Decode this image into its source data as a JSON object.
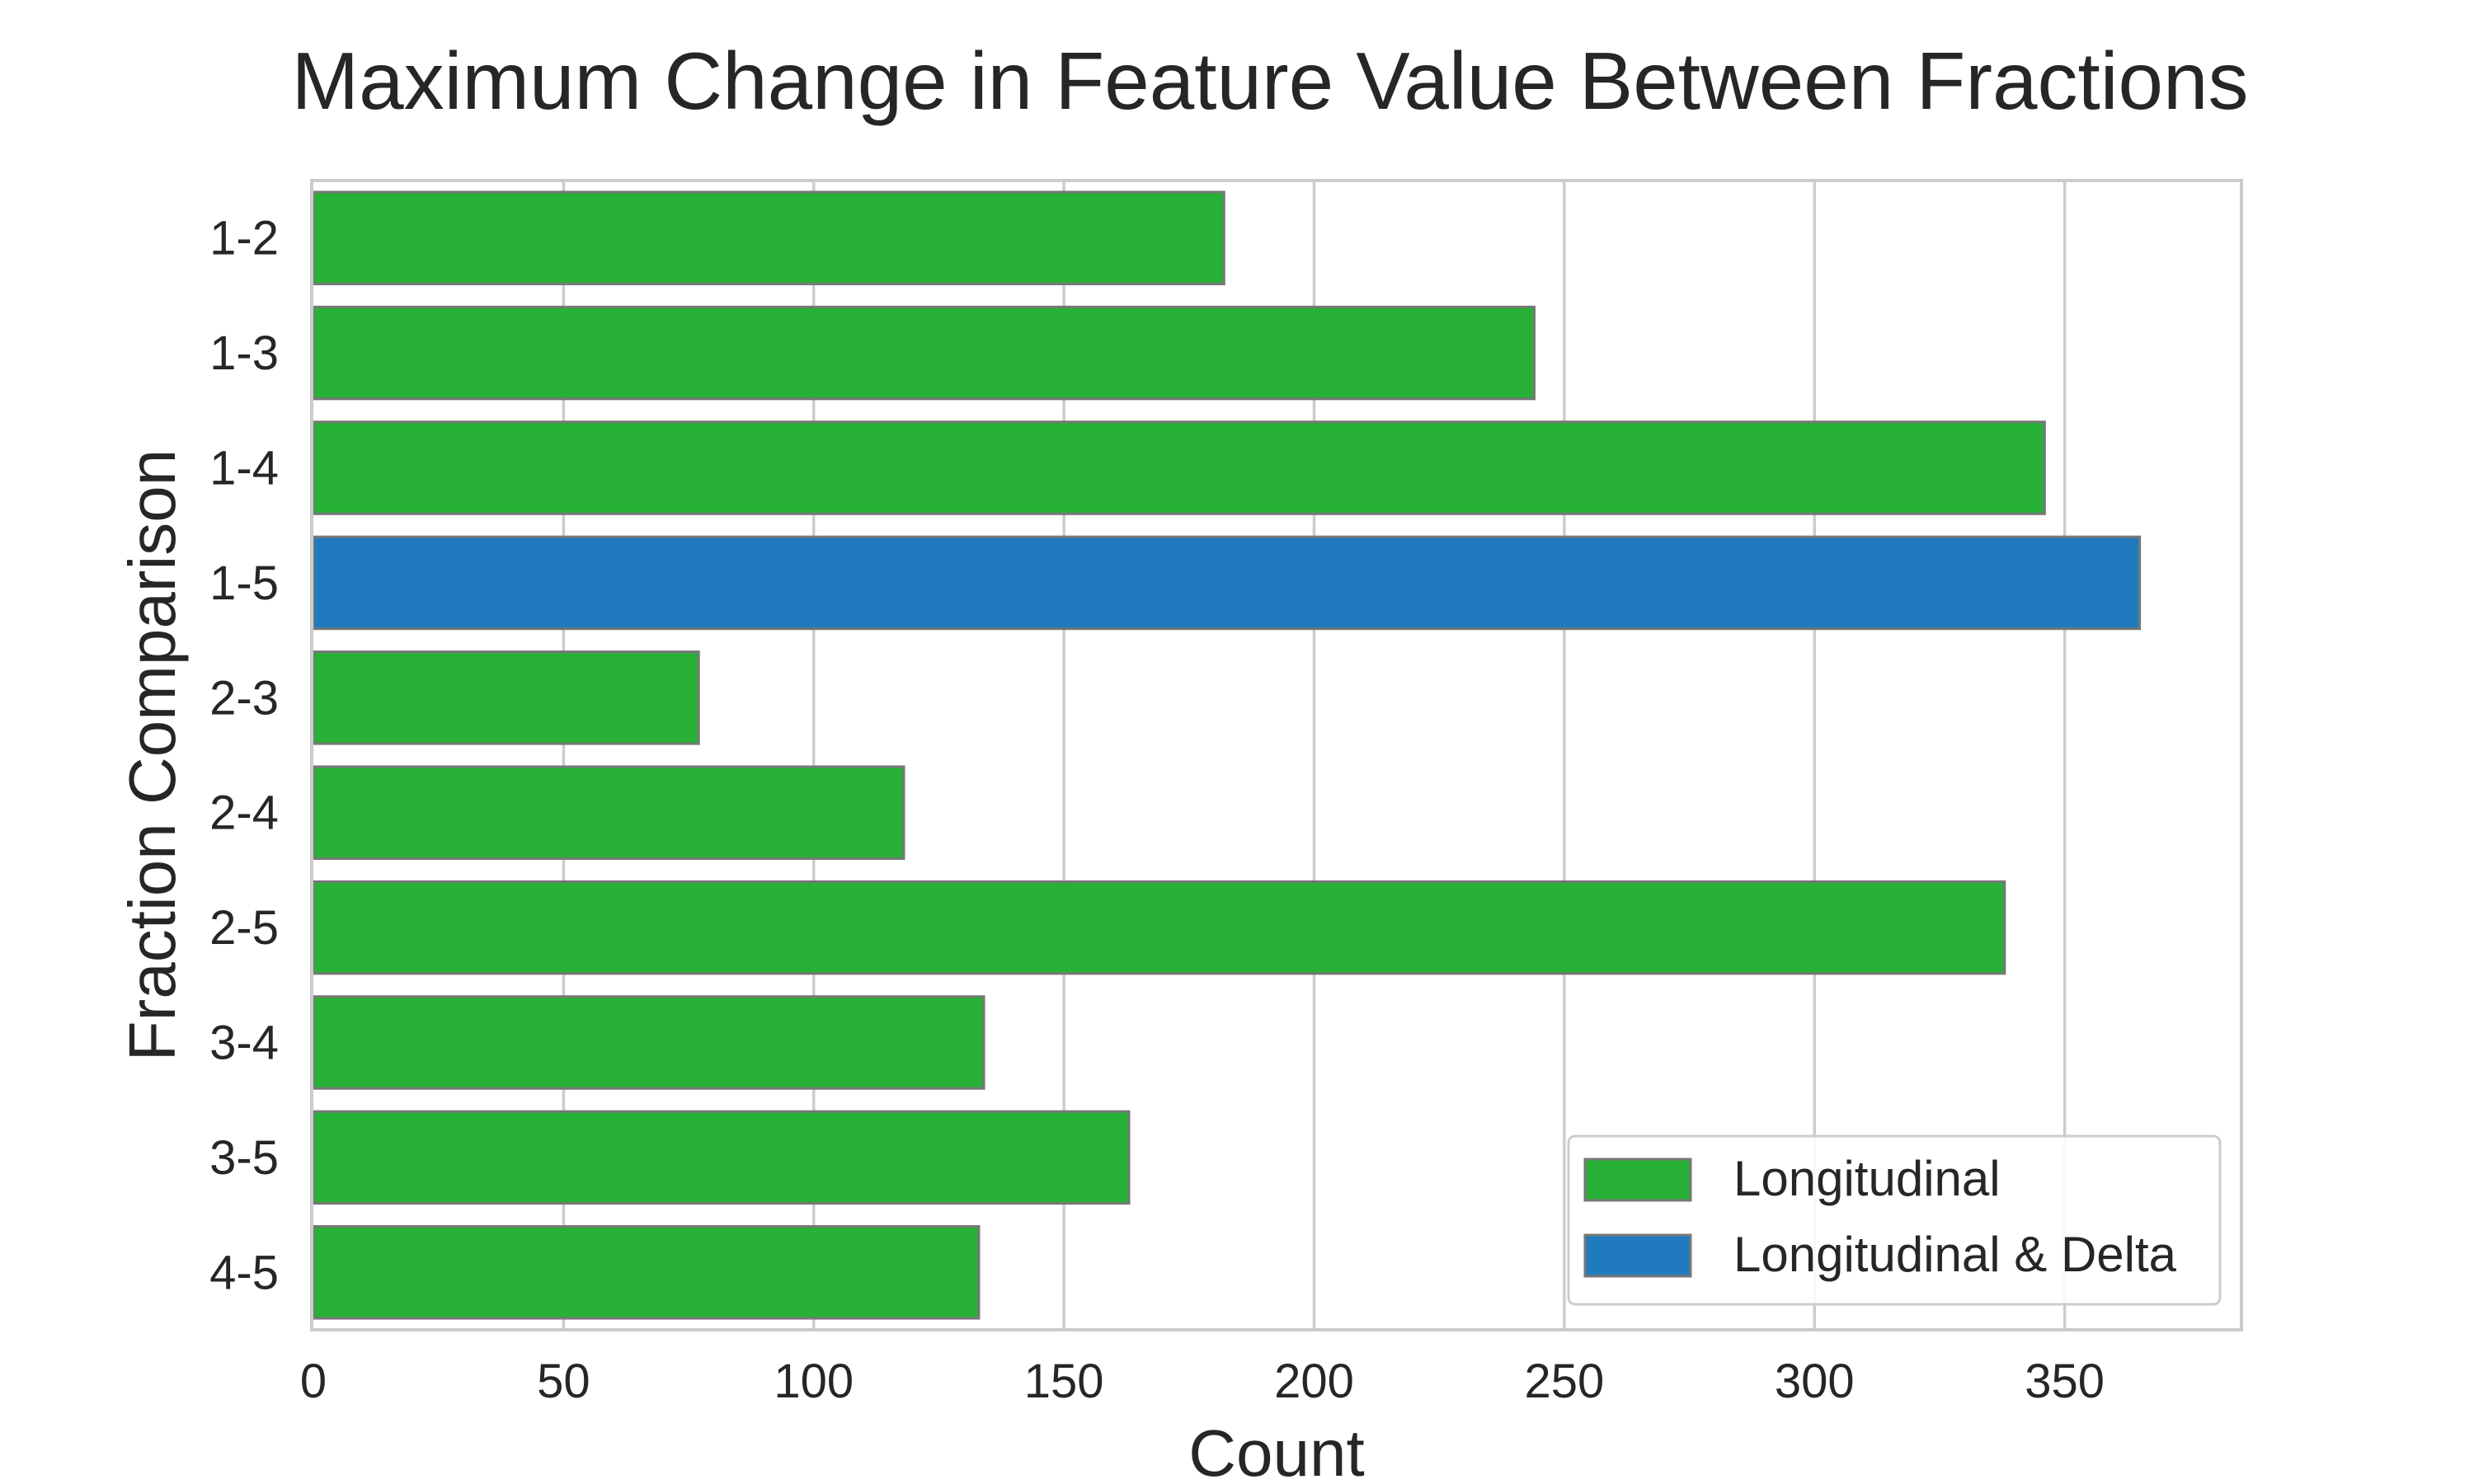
{
  "chart_data": {
    "type": "bar",
    "orientation": "horizontal",
    "title": "Maximum Change in Feature Value Between Fractions",
    "xlabel": "Count",
    "ylabel": "Fraction Comparison",
    "xlim": [
      0,
      385
    ],
    "xticks": [
      0,
      50,
      100,
      150,
      200,
      250,
      300,
      350
    ],
    "grid": "vertical",
    "legend_position": "bottom-right",
    "categories": [
      "1-2",
      "1-3",
      "1-4",
      "1-5",
      "2-3",
      "2-4",
      "2-5",
      "3-4",
      "3-5",
      "4-5"
    ],
    "values": [
      182,
      244,
      346,
      365,
      77,
      118,
      338,
      134,
      163,
      133
    ],
    "groups": [
      "Longitudinal",
      "Longitudinal",
      "Longitudinal",
      "Longitudinal & Delta",
      "Longitudinal",
      "Longitudinal",
      "Longitudinal",
      "Longitudinal",
      "Longitudinal",
      "Longitudinal"
    ],
    "legend": [
      {
        "name": "Longitudinal",
        "color": "#27b136"
      },
      {
        "name": "Longitudinal & Delta",
        "color": "#1f7bbd"
      }
    ]
  }
}
